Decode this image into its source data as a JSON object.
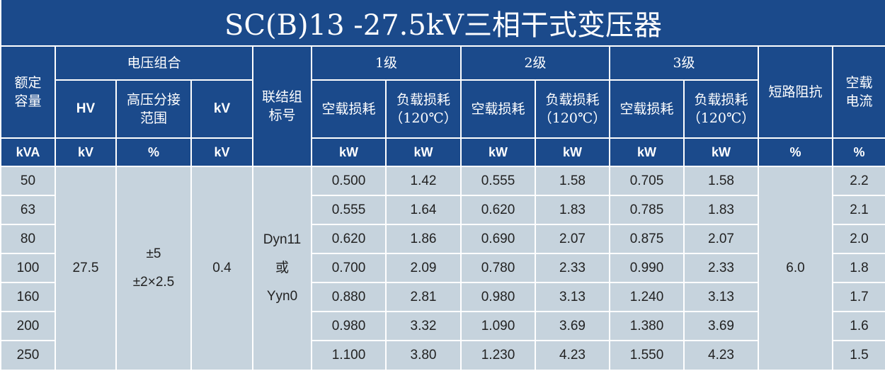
{
  "title": "SC(B)13 -27.5kV三相干式变压器",
  "header": {
    "capacity": [
      "额定",
      "容量"
    ],
    "voltage_group": "电压组合",
    "hv": "HV",
    "tap_range": [
      "高压分接",
      "范围"
    ],
    "lv": "kV",
    "vector_group": [
      "联结组",
      "标号"
    ],
    "levels": [
      "1级",
      "2级",
      "3级"
    ],
    "no_load_loss": "空载损耗",
    "load_loss": [
      "负载损耗",
      "（120℃）"
    ],
    "impedance": "短路阻抗",
    "no_load_current": [
      "空载",
      "电流"
    ]
  },
  "units": [
    "kVA",
    "kV",
    "%",
    "kV",
    "kW",
    "kW",
    "kW",
    "kW",
    "kW",
    "kW",
    "%",
    "%"
  ],
  "merged": {
    "hv": "27.5",
    "tap_range": [
      "±5",
      "±2×2.5"
    ],
    "lv": "0.4",
    "vector_group": [
      "Dyn11",
      "或",
      "Yyn0"
    ],
    "impedance": "6.0"
  },
  "rows": [
    [
      "50",
      "0.500",
      "1.42",
      "0.555",
      "1.58",
      "0.705",
      "1.58",
      "2.2"
    ],
    [
      "63",
      "0.555",
      "1.64",
      "0.620",
      "1.83",
      "0.785",
      "1.83",
      "2.1"
    ],
    [
      "80",
      "0.620",
      "1.86",
      "0.690",
      "2.07",
      "0.875",
      "2.07",
      "2.0"
    ],
    [
      "100",
      "0.700",
      "2.09",
      "0.780",
      "2.33",
      "0.990",
      "2.33",
      "1.8"
    ],
    [
      "160",
      "0.880",
      "2.81",
      "0.980",
      "3.13",
      "1.240",
      "3.13",
      "1.7"
    ],
    [
      "200",
      "0.980",
      "3.32",
      "1.090",
      "3.69",
      "1.380",
      "3.69",
      "1.6"
    ],
    [
      "250",
      "1.100",
      "3.80",
      "1.230",
      "4.23",
      "1.550",
      "4.23",
      "1.5"
    ]
  ]
}
